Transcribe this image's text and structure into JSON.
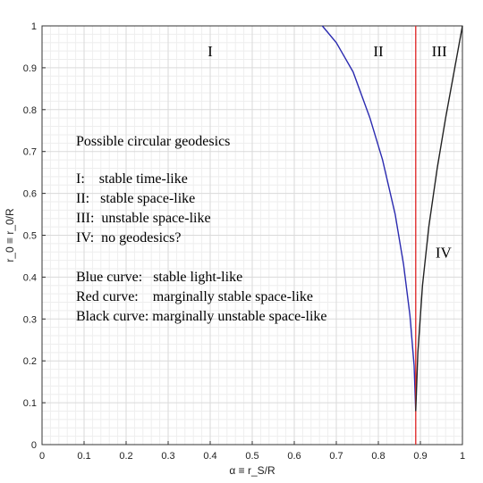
{
  "chart_data": {
    "type": "line",
    "xlabel": "α ≡ r_S/R",
    "ylabel": "r_0 ≡ r_0/R",
    "xlim": [
      0,
      1
    ],
    "ylim": [
      0,
      1
    ],
    "x_ticks": [
      "0",
      "0.1",
      "0.2",
      "0.3",
      "0.4",
      "0.5",
      "0.6",
      "0.7",
      "0.8",
      "0.9",
      "1"
    ],
    "y_ticks": [
      "0",
      "0.1",
      "0.2",
      "0.3",
      "0.4",
      "0.5",
      "0.6",
      "0.7",
      "0.8",
      "0.9",
      "1"
    ],
    "grid": "major and minor",
    "series": [
      {
        "color": "#2b2bb0",
        "x": [
          0.6667,
          0.7,
          0.74,
          0.78,
          0.81,
          0.84,
          0.86,
          0.875,
          0.885,
          0.8889
        ],
        "y": [
          1.0,
          0.96,
          0.89,
          0.78,
          0.68,
          0.55,
          0.43,
          0.31,
          0.19,
          0.08
        ]
      },
      {
        "color": "#e03030",
        "x": [
          0.8889,
          0.8889
        ],
        "y": [
          0,
          1
        ]
      },
      {
        "color": "#222222",
        "x": [
          0.8889,
          0.894,
          0.905,
          0.92,
          0.94,
          0.96,
          0.98,
          1.0
        ],
        "y": [
          0.08,
          0.22,
          0.38,
          0.52,
          0.66,
          0.78,
          0.89,
          1.0
        ]
      }
    ],
    "annotations": [
      {
        "key": "I",
        "text": "I",
        "x": 0.4,
        "y": 0.94
      },
      {
        "key": "II",
        "text": "II",
        "x": 0.8,
        "y": 0.94
      },
      {
        "key": "III",
        "text": "III",
        "x": 0.945,
        "y": 0.94
      },
      {
        "key": "IV",
        "text": "IV",
        "x": 0.955,
        "y": 0.46
      }
    ],
    "legend_text": {
      "heading": "Possible circular geodesics",
      "lines": [
        "I:    stable time-like",
        "II:   stable space-like",
        "III:  unstable space-like",
        "IV:  no geodesics?",
        "",
        "Blue curve:   stable light-like",
        "Red curve:    marginally stable space-like",
        "Black curve: marginally unstable space-like"
      ]
    }
  }
}
